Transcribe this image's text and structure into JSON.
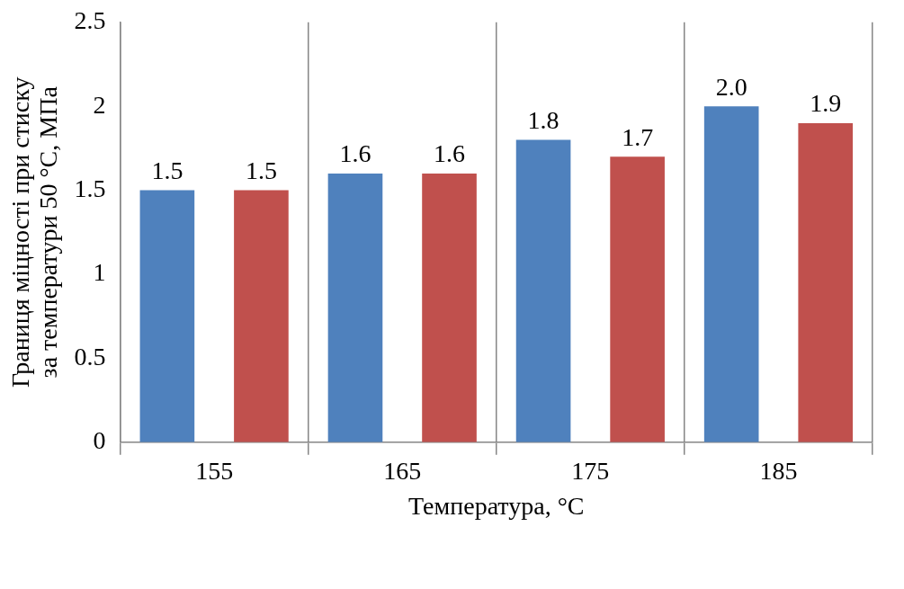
{
  "chart_data": {
    "type": "bar",
    "xlabel": "Температура, °С",
    "ylabel": "Границя міцності при стиску\nза температури 50 °С, МПа",
    "categories": [
      "155",
      "165",
      "175",
      "185"
    ],
    "series": [
      {
        "color": "#4f81bd",
        "values": [
          1.5,
          1.6,
          1.8,
          2.0
        ],
        "value_labels": [
          "1.5",
          "1.6",
          "1.8",
          "2.0"
        ]
      },
      {
        "color": "#c0504d",
        "values": [
          1.5,
          1.6,
          1.7,
          1.9
        ],
        "value_labels": [
          "1.5",
          "1.6",
          "1.7",
          "1.9"
        ]
      }
    ],
    "ylim": [
      0,
      2.5
    ],
    "yticks": [
      0,
      0.5,
      1,
      1.5,
      2,
      2.5
    ],
    "grid": "x",
    "legend": false
  }
}
